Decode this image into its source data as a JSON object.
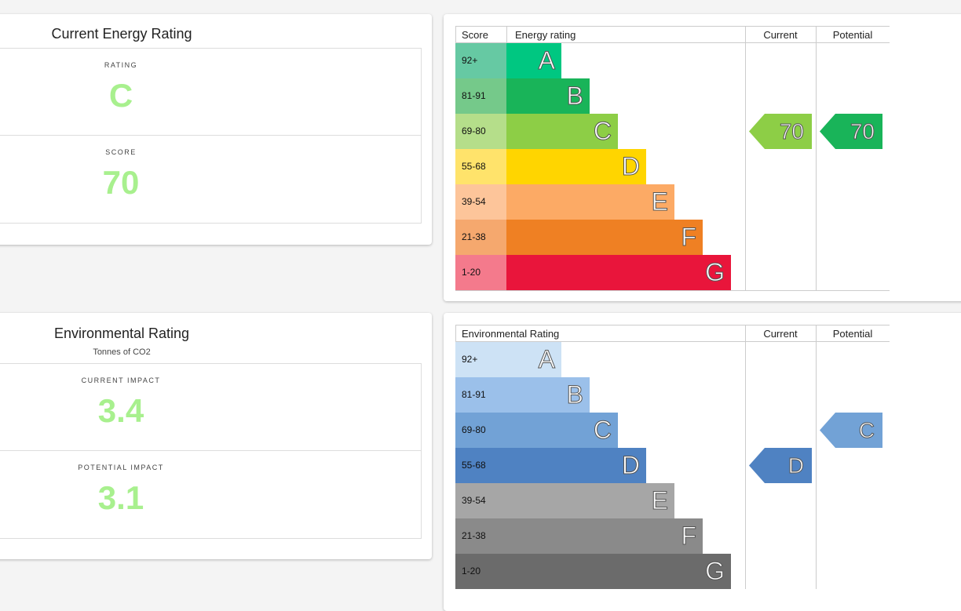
{
  "energy": {
    "title": "Current Energy Rating",
    "rating_label": "RATING",
    "rating": "C",
    "score_label": "SCORE",
    "score": "70",
    "chart": {
      "headers": {
        "score": "Score",
        "rating": "Energy rating",
        "current": "Current",
        "potential": "Potential"
      },
      "bands": [
        {
          "range": "92+",
          "letter": "A",
          "color": "#00c781",
          "score_color": "#66c9a3"
        },
        {
          "range": "81-91",
          "letter": "B",
          "color": "#19b459",
          "score_color": "#75c98a"
        },
        {
          "range": "69-80",
          "letter": "C",
          "color": "#8dce46",
          "score_color": "#b5de8a"
        },
        {
          "range": "55-68",
          "letter": "D",
          "color": "#ffd500",
          "score_color": "#ffe36b"
        },
        {
          "range": "39-54",
          "letter": "E",
          "color": "#fcaa65",
          "score_color": "#fdc59a"
        },
        {
          "range": "21-38",
          "letter": "F",
          "color": "#ef8023",
          "score_color": "#f5a86e"
        },
        {
          "range": "1-20",
          "letter": "G",
          "color": "#e9153b",
          "score_color": "#f47a8c"
        }
      ],
      "current": {
        "value": "70",
        "band": "C",
        "color": "#8dce46"
      },
      "potential": {
        "value": "70",
        "band": "C",
        "color": "#19b459"
      }
    }
  },
  "environment": {
    "title": "Environmental Rating",
    "subtitle": "Tonnes of CO2",
    "current_label": "CURRENT IMPACT",
    "current": "3.4",
    "potential_label": "POTENTIAL IMPACT",
    "potential": "3.1",
    "chart": {
      "headers": {
        "rating": "Environmental Rating",
        "current": "Current",
        "potential": "Potential"
      },
      "bands": [
        {
          "range": "92+",
          "letter": "A",
          "color": "#cde2f5",
          "score_color": "#cde2f5"
        },
        {
          "range": "81-91",
          "letter": "B",
          "color": "#9bc0ea",
          "score_color": "#9bc0ea"
        },
        {
          "range": "69-80",
          "letter": "C",
          "color": "#72a2d6",
          "score_color": "#72a2d6"
        },
        {
          "range": "55-68",
          "letter": "D",
          "color": "#4f82c2",
          "score_color": "#4f82c2"
        },
        {
          "range": "39-54",
          "letter": "E",
          "color": "#a6a6a6",
          "score_color": "#a6a6a6"
        },
        {
          "range": "21-38",
          "letter": "F",
          "color": "#8a8a8a",
          "score_color": "#8a8a8a"
        },
        {
          "range": "1-20",
          "letter": "G",
          "color": "#6b6b6b",
          "score_color": "#6b6b6b"
        }
      ],
      "current": {
        "value": "D",
        "band": "D",
        "color": "#4f82c2"
      },
      "potential": {
        "value": "C",
        "band": "C",
        "color": "#72a2d6"
      }
    }
  }
}
